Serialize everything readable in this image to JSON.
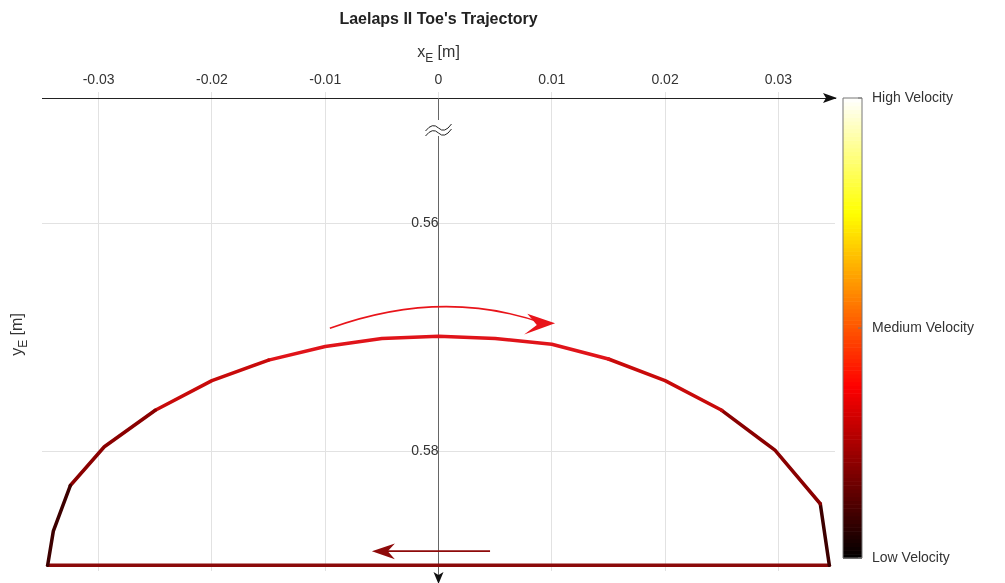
{
  "chart_data": {
    "type": "line",
    "title": "Laelaps II Toe's Trajectory",
    "xlabel": "x$_{E}$ [m]",
    "ylabel": "y$_{E}$ [m]",
    "series": [
      {
        "color": "#3d0000",
        "x": [
          -0.0345,
          -0.034,
          -0.0325
        ],
        "values": [
          0.59,
          0.587,
          0.583
        ]
      },
      {
        "color": "#8a0000",
        "x": [
          -0.0325,
          -0.0295,
          -0.025
        ],
        "values": [
          0.583,
          0.5796,
          0.5764
        ]
      },
      {
        "color": "#c80a0a",
        "x": [
          -0.025,
          -0.02,
          -0.015
        ],
        "values": [
          0.5764,
          0.5738,
          0.572
        ]
      },
      {
        "color": "#e0141a",
        "x": [
          -0.015,
          -0.01,
          -0.005,
          0,
          0.005,
          0.01,
          0.015
        ],
        "values": [
          0.572,
          0.5708,
          0.5701,
          0.5699,
          0.5701,
          0.5706,
          0.5719
        ]
      },
      {
        "color": "#c80a0a",
        "x": [
          0.015,
          0.02,
          0.025
        ],
        "values": [
          0.5719,
          0.5738,
          0.5764
        ]
      },
      {
        "color": "#8a0000",
        "x": [
          0.025,
          0.0297,
          0.0337
        ],
        "values": [
          0.5764,
          0.5799,
          0.5846
        ]
      },
      {
        "color": "#3d0000",
        "x": [
          0.0337,
          0.0345
        ],
        "values": [
          0.5846,
          0.59
        ]
      },
      {
        "color": "#8b0a0a",
        "x": [
          0.0345,
          -0.0345
        ],
        "values": [
          0.59,
          0.59
        ]
      }
    ],
    "xlim": [
      -0.035,
      0.035
    ],
    "xticks": [
      -0.03,
      -0.02,
      -0.01,
      0,
      0.01,
      0.02,
      0.03
    ],
    "ylim": [
      0.5905,
      0.549
    ],
    "yticks": [
      0.56,
      0.58
    ],
    "grid": true,
    "marker": "none",
    "clim": [
      0,
      1
    ],
    "cticks": [
      {
        "value": 0,
        "label": "Low Velocity"
      },
      {
        "value": 0.5,
        "label": "Medium Velocity"
      },
      {
        "value": 1,
        "label": "High Velocity"
      }
    ]
  }
}
